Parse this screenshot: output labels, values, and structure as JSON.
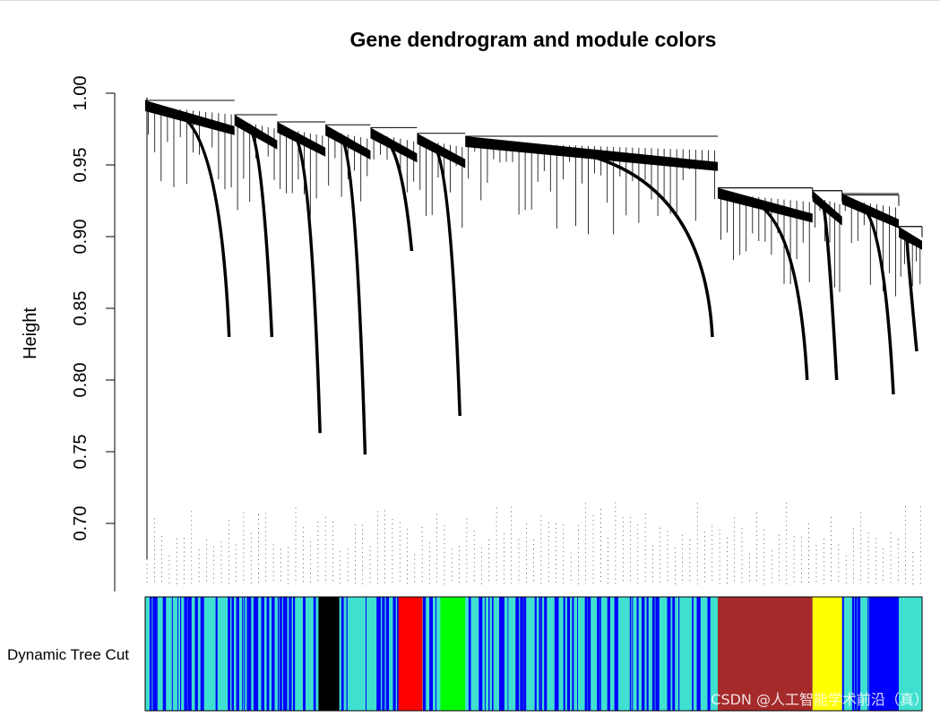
{
  "chart_data": {
    "type": "dendrogram",
    "title": "Gene dendrogram and module colors",
    "ylabel": "Height",
    "xlabel": "",
    "ylim": [
      0.65,
      1.0
    ],
    "yticks": [
      "0.70",
      "0.75",
      "0.80",
      "0.85",
      "0.90",
      "0.95",
      "1.00"
    ],
    "ytick_values": [
      0.7,
      0.75,
      0.8,
      0.85,
      0.9,
      0.95,
      1.0
    ],
    "grid": false,
    "color_bar_label": "Dynamic Tree Cut",
    "module_colors": {
      "blue": "#0000ff",
      "turquoise": "#40e0d0",
      "black": "#000000",
      "red": "#ff0000",
      "green": "#00ff00",
      "brown": "#a52a2a",
      "yellow": "#ffff00"
    },
    "modules": [
      {
        "color": "turquoise/blue mixed",
        "start": 0.0,
        "end": 0.223
      },
      {
        "color": "black",
        "start": 0.223,
        "end": 0.25
      },
      {
        "color": "turquoise/blue mixed",
        "start": 0.25,
        "end": 0.326
      },
      {
        "color": "red",
        "start": 0.326,
        "end": 0.357
      },
      {
        "color": "turquoise/blue mixed",
        "start": 0.357,
        "end": 0.38
      },
      {
        "color": "green",
        "start": 0.38,
        "end": 0.412
      },
      {
        "color": "turquoise/blue mixed",
        "start": 0.412,
        "end": 0.737
      },
      {
        "color": "brown",
        "start": 0.737,
        "end": 0.859
      },
      {
        "color": "yellow",
        "start": 0.859,
        "end": 0.897
      },
      {
        "color": "turquoise/blue mixed",
        "start": 0.897,
        "end": 0.932
      },
      {
        "color": "blue",
        "start": 0.932,
        "end": 0.97
      },
      {
        "color": "turquoise",
        "start": 0.97,
        "end": 1.0
      }
    ],
    "main_branches": [
      {
        "from": 0.0,
        "to": 0.115,
        "top": 0.995,
        "dip": 0.83
      },
      {
        "from": 0.115,
        "to": 0.17,
        "top": 0.985,
        "dip": 0.83
      },
      {
        "from": 0.17,
        "to": 0.232,
        "top": 0.98,
        "dip": 0.763
      },
      {
        "from": 0.232,
        "to": 0.29,
        "top": 0.978,
        "dip": 0.748
      },
      {
        "from": 0.29,
        "to": 0.35,
        "top": 0.976,
        "dip": 0.89
      },
      {
        "from": 0.35,
        "to": 0.412,
        "top": 0.972,
        "dip": 0.775
      },
      {
        "from": 0.412,
        "to": 0.737,
        "top": 0.97,
        "dip": 0.83
      },
      {
        "from": 0.737,
        "to": 0.859,
        "top": 0.934,
        "dip": 0.8
      },
      {
        "from": 0.859,
        "to": 0.897,
        "top": 0.932,
        "dip": 0.8
      },
      {
        "from": 0.897,
        "to": 0.97,
        "top": 0.93,
        "dip": 0.79
      },
      {
        "from": 0.97,
        "to": 1.0,
        "top": 0.907,
        "dip": 0.82
      }
    ]
  },
  "watermark": "CSDN @人工智能学术前沿（真）"
}
